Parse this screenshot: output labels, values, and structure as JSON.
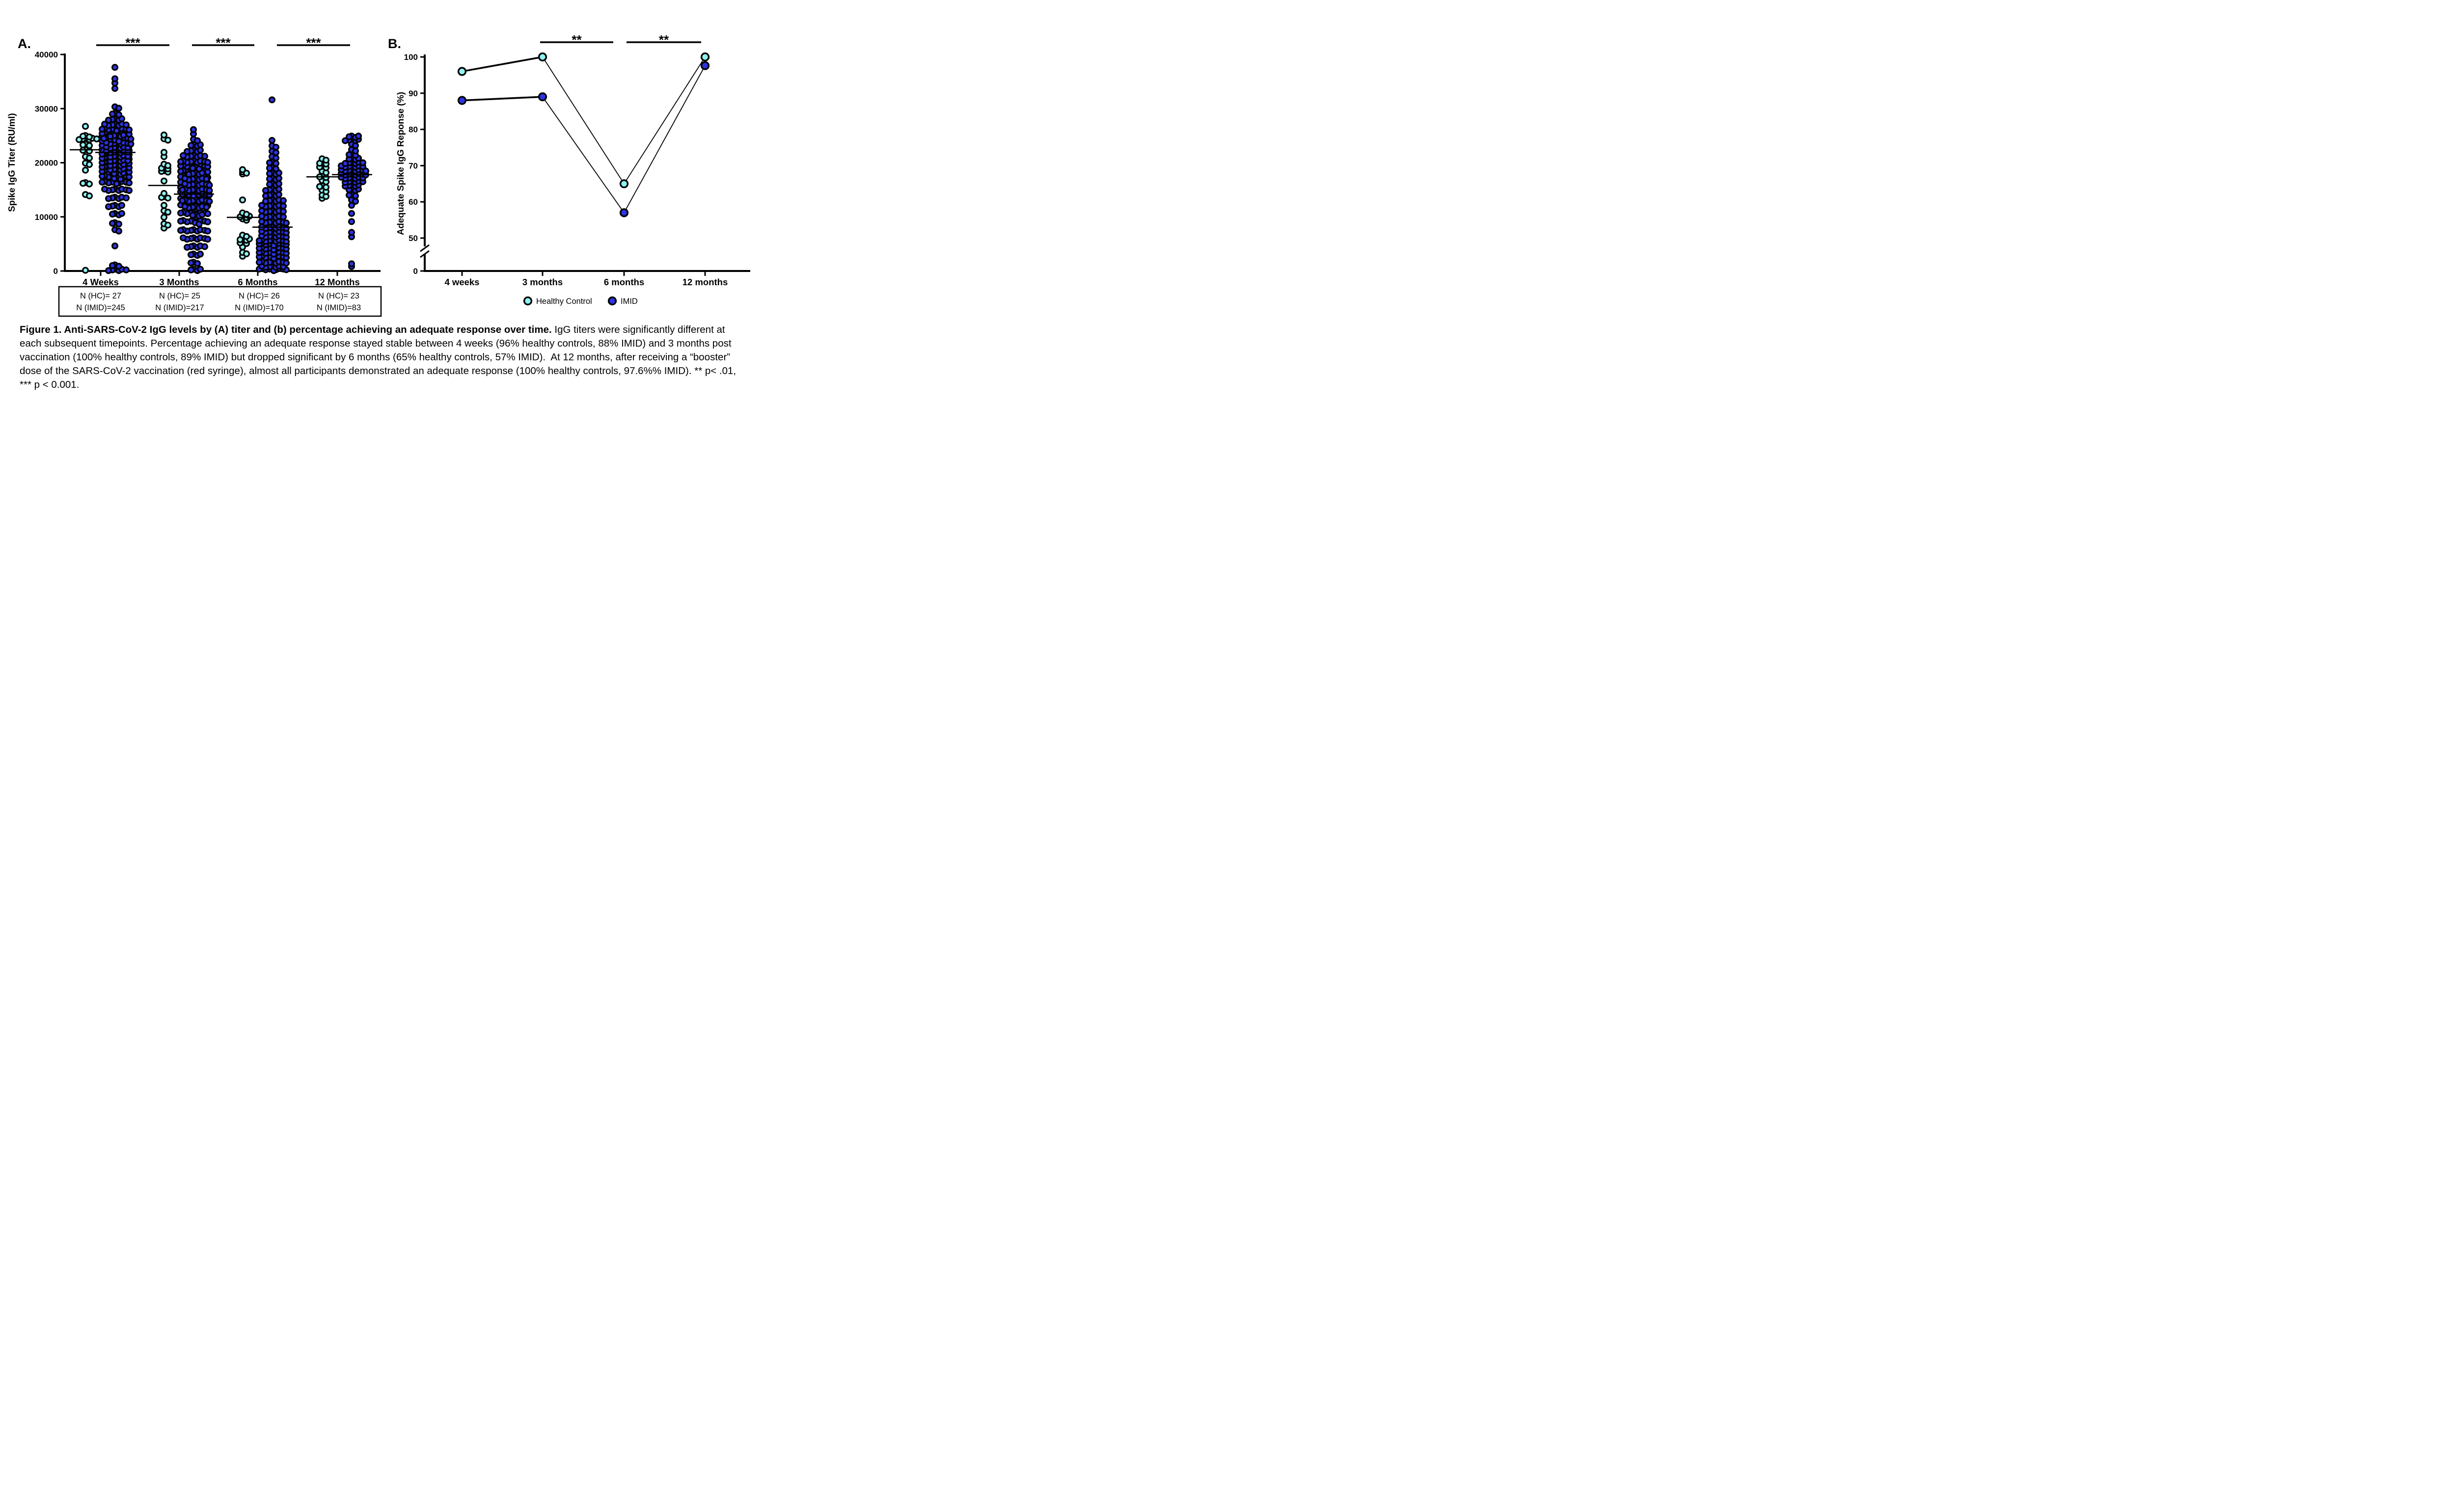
{
  "figure": {
    "panel_a": {
      "label": "A."
    },
    "panel_b": {
      "label": "B."
    },
    "caption": {
      "bold": "Figure 1. Anti-SARS-CoV-2 IgG levels by (A) titer and (b) percentage achieving an adequate response over time.",
      "regular": " IgG titers were significantly different at each subsequent timepoints. Percentage achieving an adequate response stayed stable between 4 weeks (96% healthy controls, 88% IMID) and 3 months post vaccination (100% healthy controls, 89% IMID) but dropped significant by 6 months (65% healthy controls, 57% IMID).  At 12 months, after receiving a “booster” dose of the SARS-CoV-2 vaccination (red syringe), almost all participants demonstrated an adequate response (100% healthy controls, 97.6%% IMID). ** p< .01, *** p < 0.001."
    }
  },
  "colors": {
    "healthy_control": "#8EF2F0",
    "imid": "#2B33E2",
    "stroke": "#000000",
    "background": "#FFFFFF"
  },
  "chart_data": [
    {
      "id": "panel_a",
      "type": "scatter",
      "subtype": "beeswarm",
      "ylabel": "Spike IgG Titer (RU/ml)",
      "ylim": [
        0,
        40000
      ],
      "yticks": [
        0,
        10000,
        20000,
        30000,
        40000
      ],
      "ytick_labels": [
        "0",
        "10000",
        "20000",
        "30000",
        "40000"
      ],
      "categories": [
        "4 Weeks",
        "3 Months",
        "6 Months",
        "12 Months"
      ],
      "series": [
        {
          "name": "Healthy Control",
          "color_key": "healthy_control",
          "n": [
            27,
            25,
            26,
            23
          ],
          "medians": [
            22400,
            15800,
            9900,
            17400
          ],
          "distributions": [
            [
              [
                0,
                1
              ],
              [
                14000,
                2
              ],
              [
                16200,
                3
              ],
              [
                18500,
                1
              ],
              [
                19800,
                2
              ],
              [
                21000,
                2
              ],
              [
                22300,
                3
              ],
              [
                23300,
                3
              ],
              [
                24400,
                6
              ],
              [
                24900,
                3
              ],
              [
                26600,
                1
              ]
            ],
            [
              [
                7800,
                1
              ],
              [
                8600,
                2
              ],
              [
                9800,
                1
              ],
              [
                11000,
                2
              ],
              [
                12000,
                1
              ],
              [
                13600,
                3
              ],
              [
                14200,
                1
              ],
              [
                16500,
                1
              ],
              [
                18400,
                3
              ],
              [
                19000,
                3
              ],
              [
                19600,
                2
              ],
              [
                21000,
                1
              ],
              [
                21800,
                1
              ],
              [
                24300,
                2
              ],
              [
                25000,
                1
              ]
            ],
            [
              [
                2600,
                1
              ],
              [
                3300,
                2
              ],
              [
                4300,
                1
              ],
              [
                5200,
                3
              ],
              [
                5800,
                4
              ],
              [
                6500,
                2
              ],
              [
                9500,
                2
              ],
              [
                10000,
                4
              ],
              [
                10600,
                2
              ],
              [
                13000,
                1
              ],
              [
                17800,
                1
              ],
              [
                18200,
                2
              ],
              [
                18600,
                1
              ]
            ],
            [
              [
                13300,
                1
              ],
              [
                13900,
                2
              ],
              [
                14800,
                2
              ],
              [
                15600,
                3
              ],
              [
                16600,
                2
              ],
              [
                17400,
                3
              ],
              [
                18300,
                2
              ],
              [
                19200,
                3
              ],
              [
                19900,
                3
              ],
              [
                20600,
                2
              ]
            ]
          ]
        },
        {
          "name": "IMID",
          "color_key": "imid",
          "n": [
            245,
            217,
            170,
            83
          ],
          "medians": [
            21900,
            14200,
            8100,
            17800
          ],
          "distributions": [
            [
              [
                200,
                6
              ],
              [
                1000,
                3
              ],
              [
                4500,
                1
              ],
              [
                7500,
                2
              ],
              [
                8800,
                3
              ],
              [
                10500,
                4
              ],
              [
                12000,
                5
              ],
              [
                13500,
                6
              ],
              [
                15000,
                8
              ],
              [
                16200,
                10
              ],
              [
                17300,
                12
              ],
              [
                18200,
                13
              ],
              [
                19000,
                14
              ],
              [
                19800,
                14
              ],
              [
                20600,
                15
              ],
              [
                21400,
                15
              ],
              [
                22200,
                16
              ],
              [
                23000,
                16
              ],
              [
                23800,
                17
              ],
              [
                24500,
                20
              ],
              [
                25200,
                14
              ],
              [
                26000,
                10
              ],
              [
                27000,
                7
              ],
              [
                28000,
                5
              ],
              [
                29000,
                3
              ],
              [
                30200,
                2
              ],
              [
                33600,
                1
              ],
              [
                34600,
                1
              ],
              [
                35400,
                1
              ],
              [
                37500,
                1
              ]
            ],
            [
              [
                200,
                4
              ],
              [
                1500,
                3
              ],
              [
                3000,
                4
              ],
              [
                4500,
                6
              ],
              [
                6000,
                8
              ],
              [
                7500,
                9
              ],
              [
                9000,
                11
              ],
              [
                10500,
                13
              ],
              [
                12000,
                16
              ],
              [
                13200,
                18
              ],
              [
                14200,
                19
              ],
              [
                15200,
                18
              ],
              [
                16200,
                17
              ],
              [
                17200,
                16
              ],
              [
                18200,
                14
              ],
              [
                19200,
                12
              ],
              [
                20200,
                9
              ],
              [
                21200,
                7
              ],
              [
                22200,
                5
              ],
              [
                23200,
                4
              ],
              [
                24200,
                2
              ],
              [
                25200,
                1
              ],
              [
                26000,
                1
              ]
            ],
            [
              [
                150,
                10
              ],
              [
                800,
                7
              ],
              [
                1600,
                9
              ],
              [
                2400,
                10
              ],
              [
                3200,
                10
              ],
              [
                4000,
                10
              ],
              [
                4800,
                10
              ],
              [
                5600,
                9
              ],
              [
                6400,
                8
              ],
              [
                7200,
                8
              ],
              [
                8000,
                8
              ],
              [
                9000,
                8
              ],
              [
                10000,
                7
              ],
              [
                11000,
                7
              ],
              [
                12000,
                7
              ],
              [
                13000,
                6
              ],
              [
                14000,
                5
              ],
              [
                15000,
                5
              ],
              [
                16000,
                4
              ],
              [
                17000,
                4
              ],
              [
                18000,
                4
              ],
              [
                19000,
                3
              ],
              [
                20000,
                3
              ],
              [
                21000,
                2
              ],
              [
                22000,
                2
              ],
              [
                23000,
                2
              ],
              [
                24000,
                1
              ],
              [
                31500,
                1
              ]
            ],
            [
              [
                700,
                1
              ],
              [
                1200,
                1
              ],
              [
                6200,
                1
              ],
              [
                7000,
                1
              ],
              [
                9000,
                1
              ],
              [
                10500,
                1
              ],
              [
                12000,
                1
              ],
              [
                13000,
                2
              ],
              [
                14000,
                3
              ],
              [
                15000,
                4
              ],
              [
                15800,
                5
              ],
              [
                16500,
                6
              ],
              [
                17200,
                7
              ],
              [
                17900,
                8
              ],
              [
                18600,
                8
              ],
              [
                19300,
                7
              ],
              [
                20000,
                6
              ],
              [
                20700,
                4
              ],
              [
                21500,
                3
              ],
              [
                22300,
                2
              ],
              [
                23300,
                2
              ],
              [
                24200,
                5
              ],
              [
                24800,
                4
              ]
            ]
          ]
        }
      ],
      "significance": [
        {
          "from": "4 Weeks",
          "to": "3 Months",
          "label": "***"
        },
        {
          "from": "3 Months",
          "to": "6 Months",
          "label": "***"
        },
        {
          "from": "6 Months",
          "to": "12 Months",
          "label": "***"
        }
      ],
      "n_table": [
        [
          "N (HC)= 27",
          "N (IMID)=245"
        ],
        [
          "N (HC)= 25",
          "N (IMID)=217"
        ],
        [
          "N (HC)= 26",
          "N (IMID)=170"
        ],
        [
          "N (HC)= 23",
          "N (IMID)=83"
        ]
      ]
    },
    {
      "id": "panel_b",
      "type": "line",
      "ylabel": "Adequate Spike IgG Reponse (%)",
      "yticks": [
        0,
        50,
        60,
        70,
        80,
        90,
        100
      ],
      "axis_break_between": [
        0,
        50
      ],
      "categories": [
        "4 weeks",
        "3 months",
        "6 months",
        "12 months"
      ],
      "series": [
        {
          "name": "Healthy Control",
          "color_key": "healthy_control",
          "values": [
            96,
            100,
            65,
            100
          ]
        },
        {
          "name": "IMID",
          "color_key": "imid",
          "values": [
            88,
            89,
            57,
            97.6
          ]
        }
      ],
      "significance": [
        {
          "from": "3 months",
          "to": "6 months",
          "label": "**"
        },
        {
          "from": "6 months",
          "to": "12 months",
          "label": "**"
        }
      ],
      "legend": [
        {
          "label": "Healthy Control",
          "color_key": "healthy_control"
        },
        {
          "label": "IMID",
          "color_key": "imid"
        }
      ]
    }
  ]
}
